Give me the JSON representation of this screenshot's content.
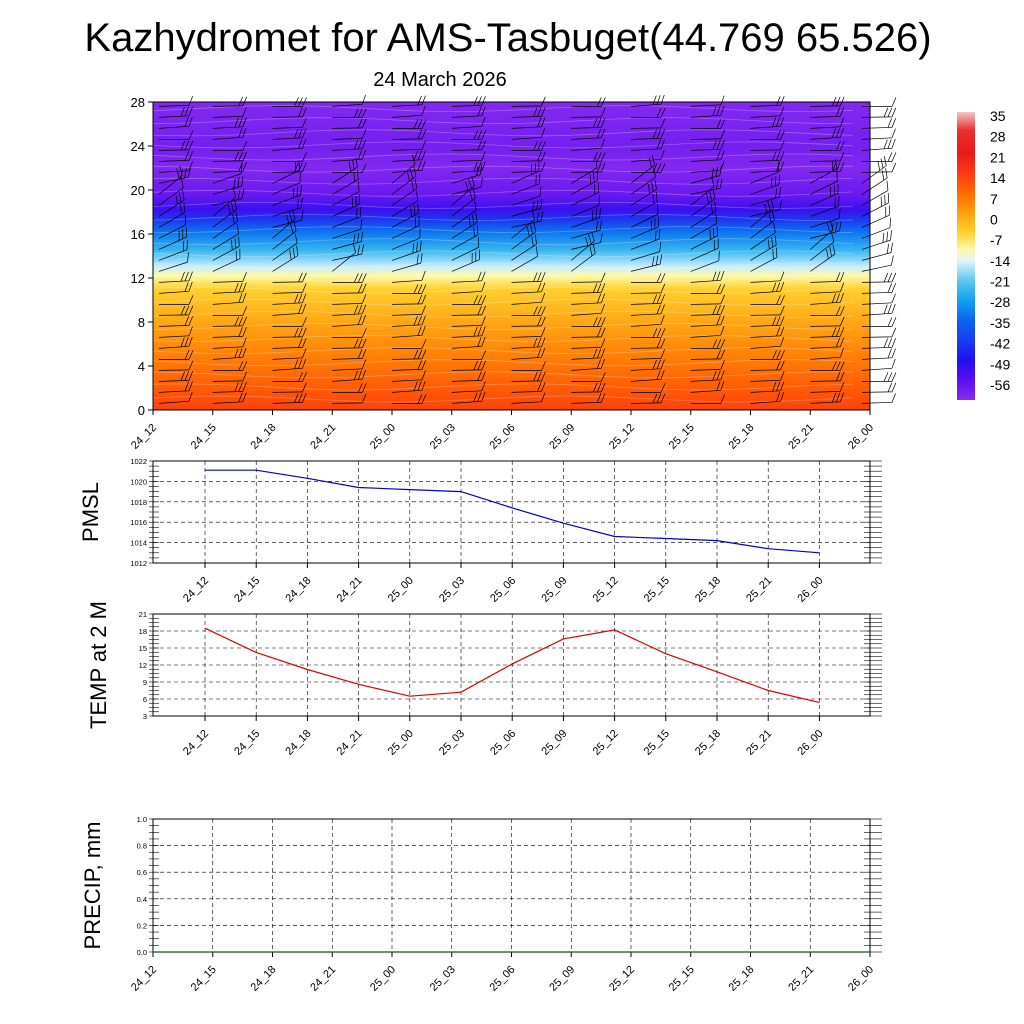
{
  "title": "Kazhydromet for AMS-Tasbuget(44.769 65.526)",
  "subtitle": "24 March 2026",
  "time_labels": [
    "24_12",
    "24_15",
    "24_18",
    "24_21",
    "25_00",
    "25_03",
    "25_06",
    "25_09",
    "25_12",
    "25_15",
    "25_18",
    "25_21",
    "26_00"
  ],
  "colors": {
    "pmsl_line": "#0000cc",
    "temp_line": "#e00000",
    "precip_line": "#006400",
    "grid": "#000000"
  },
  "chart_data": [
    {
      "type": "heatmap",
      "name": "temperature-wind-cross-section",
      "x": [
        "24_12",
        "24_15",
        "24_18",
        "24_21",
        "25_00",
        "25_03",
        "25_06",
        "25_09",
        "25_12",
        "25_15",
        "25_18",
        "25_21",
        "26_00"
      ],
      "ylabel": "",
      "ylim": [
        0,
        28
      ],
      "yticks": [
        0,
        4,
        8,
        12,
        16,
        20,
        24,
        28
      ],
      "colorbar": {
        "labels": [
          35,
          28,
          21,
          14,
          7,
          0,
          -7,
          -14,
          -21,
          -28,
          -35,
          -42,
          -49,
          -56
        ],
        "range": [
          -63,
          38.5
        ],
        "stops": [
          {
            "value": 38.5,
            "color": "#f4c6c6"
          },
          {
            "value": 32,
            "color": "#e83030"
          },
          {
            "value": 24,
            "color": "#e81a1a"
          },
          {
            "value": 17,
            "color": "#ff3a10"
          },
          {
            "value": 10,
            "color": "#ff6a00"
          },
          {
            "value": 3,
            "color": "#ffa010"
          },
          {
            "value": -4,
            "color": "#ffd030"
          },
          {
            "value": -10,
            "color": "#fff8a8"
          },
          {
            "value": -14,
            "color": "#e0f4ff"
          },
          {
            "value": -21,
            "color": "#5ac8f0"
          },
          {
            "value": -28,
            "color": "#10a0f0"
          },
          {
            "value": -35,
            "color": "#0a64f0"
          },
          {
            "value": -42,
            "color": "#1a3cf0"
          },
          {
            "value": -49,
            "color": "#2010f0"
          },
          {
            "value": -56,
            "color": "#5a10f0"
          },
          {
            "value": -63,
            "color": "#8a2cf0"
          }
        ]
      },
      "temperature_profile": [
        {
          "level": 0,
          "value": 16
        },
        {
          "level": 2,
          "value": 12
        },
        {
          "level": 5,
          "value": 7
        },
        {
          "level": 8,
          "value": 2
        },
        {
          "level": 11,
          "value": -4
        },
        {
          "level": 12.2,
          "value": -10
        },
        {
          "level": 13,
          "value": -15
        },
        {
          "level": 14.5,
          "value": -24
        },
        {
          "level": 16,
          "value": -32
        },
        {
          "level": 17.2,
          "value": -42
        },
        {
          "level": 18.2,
          "value": -52
        },
        {
          "level": 19.5,
          "value": -58
        },
        {
          "level": 22,
          "value": -62
        },
        {
          "level": 24,
          "value": -60
        },
        {
          "level": 28,
          "value": -62
        }
      ]
    },
    {
      "type": "line",
      "name": "pmsl",
      "ylabel": "PMSL",
      "ylim": [
        1012,
        1022
      ],
      "yticks": [
        1012,
        1014,
        1016,
        1018,
        1020,
        1022
      ],
      "x": [
        "24_12",
        "24_15",
        "24_18",
        "24_21",
        "25_00",
        "25_03",
        "25_06",
        "25_09",
        "25_12",
        "25_15",
        "25_18",
        "25_21",
        "26_00"
      ],
      "values": [
        1021.1,
        1021.1,
        1020.3,
        1019.4,
        1019.2,
        1019.0,
        1017.4,
        1015.9,
        1014.6,
        1014.4,
        1014.2,
        1013.4,
        1013.0
      ]
    },
    {
      "type": "line",
      "name": "temp-2m",
      "ylabel": "TEMP at 2 M",
      "ylim": [
        3,
        21
      ],
      "yticks": [
        3,
        6,
        9,
        12,
        15,
        18,
        21
      ],
      "x": [
        "24_12",
        "24_15",
        "24_18",
        "24_21",
        "25_00",
        "25_03",
        "25_06",
        "25_09",
        "25_12",
        "25_15",
        "25_18",
        "25_21",
        "26_00"
      ],
      "values": [
        18.5,
        14.2,
        11.2,
        8.6,
        6.5,
        7.2,
        12.2,
        16.6,
        18.2,
        14.0,
        10.8,
        7.5,
        5.4
      ]
    },
    {
      "type": "line",
      "name": "precip",
      "ylabel": "PRECIP, mm",
      "ylim": [
        0.0,
        1.0
      ],
      "yticks": [
        "0.0",
        "0.2",
        "0.4",
        "0.6",
        "0.8",
        "1.0"
      ],
      "x": [
        "24_12",
        "24_15",
        "24_18",
        "24_21",
        "25_00",
        "25_03",
        "25_06",
        "25_09",
        "25_12",
        "25_15",
        "25_18",
        "25_21",
        "26_00"
      ],
      "values": [
        0,
        0,
        0,
        0,
        0,
        0,
        0,
        0,
        0,
        0,
        0,
        0,
        0
      ]
    }
  ]
}
